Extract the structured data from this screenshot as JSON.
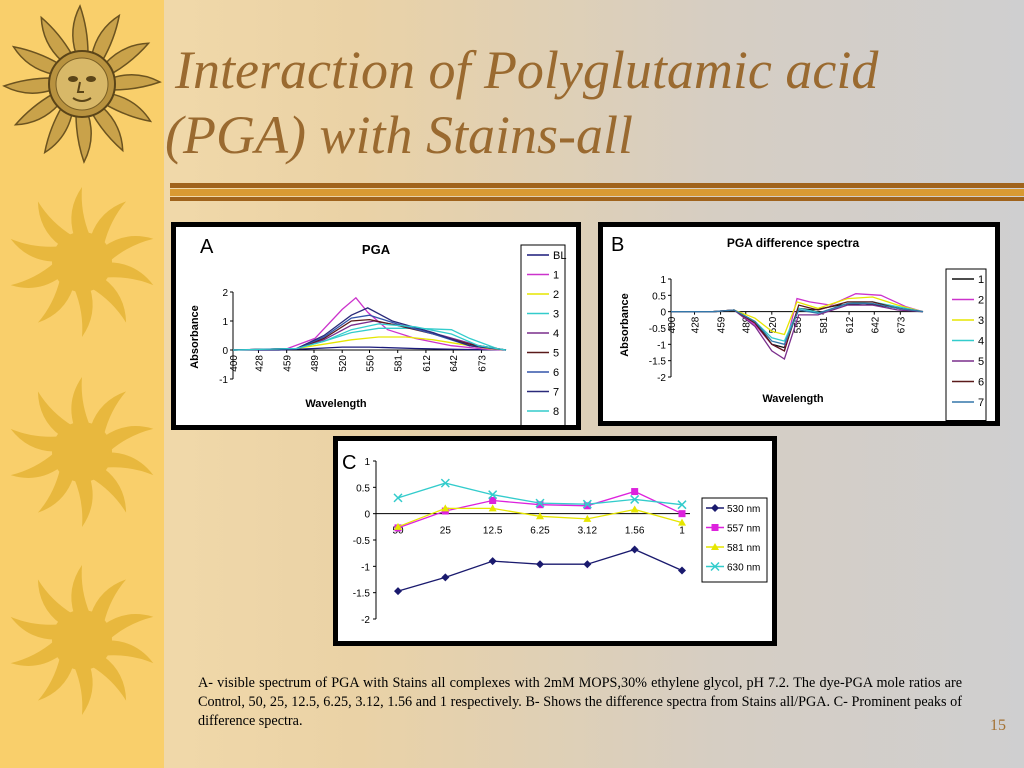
{
  "slide": {
    "title_line1": "Interaction of Polyglutamic acid",
    "title_line2": "(PGA) with Stains-all",
    "caption": "A- visible spectrum of PGA with Stains all complexes with 2mM MOPS,30% ethylene glycol, pH 7.2. The dye-PGA mole ratios are Control, 50, 25, 12.5, 6.25, 3.12, 1.56 and 1 respectively. B- Shows the difference spectra from Stains all/PGA. C- Prominent peaks of difference spectra.",
    "page_number": "15"
  },
  "chart_data": [
    {
      "id": "A",
      "panel_label": "A",
      "type": "line",
      "title": "PGA",
      "xlabel": "Wavelength",
      "ylabel": "Absorbance",
      "x": [
        "400",
        "428",
        "459",
        "489",
        "520",
        "550",
        "581",
        "612",
        "642",
        "673"
      ],
      "ylim": [
        -1,
        2
      ],
      "yticks": [
        "2",
        "1",
        "0",
        "-1"
      ],
      "legend": "right",
      "series": [
        {
          "name": "BL",
          "color": "#1a1a7a",
          "values": [
            [
              400,
              0
            ],
            [
              450,
              0
            ],
            [
              490,
              0.05
            ],
            [
              520,
              0.1
            ],
            [
              550,
              0.1
            ],
            [
              600,
              0.05
            ],
            [
              650,
              0.02
            ],
            [
              700,
              0
            ]
          ]
        },
        {
          "name": "1",
          "color": "#cc33cc",
          "values": [
            [
              400,
              0
            ],
            [
              460,
              0.05
            ],
            [
              490,
              0.4
            ],
            [
              520,
              1.4
            ],
            [
              535,
              1.8
            ],
            [
              548,
              1.3
            ],
            [
              570,
              0.7
            ],
            [
              600,
              0.4
            ],
            [
              640,
              0.15
            ],
            [
              680,
              0.02
            ],
            [
              700,
              0
            ]
          ]
        },
        {
          "name": "2",
          "color": "#e6e600",
          "values": [
            [
              400,
              0
            ],
            [
              470,
              0.05
            ],
            [
              500,
              0.2
            ],
            [
              530,
              0.35
            ],
            [
              560,
              0.45
            ],
            [
              590,
              0.45
            ],
            [
              620,
              0.35
            ],
            [
              650,
              0.2
            ],
            [
              680,
              0.05
            ],
            [
              700,
              0
            ]
          ]
        },
        {
          "name": "3",
          "color": "#33cccc",
          "values": [
            [
              400,
              0
            ],
            [
              470,
              0.05
            ],
            [
              500,
              0.3
            ],
            [
              530,
              0.6
            ],
            [
              560,
              0.75
            ],
            [
              600,
              0.75
            ],
            [
              640,
              0.7
            ],
            [
              660,
              0.4
            ],
            [
              690,
              0.05
            ],
            [
              700,
              0
            ]
          ]
        },
        {
          "name": "4",
          "color": "#7a2e8c",
          "values": [
            [
              400,
              0
            ],
            [
              470,
              0.05
            ],
            [
              500,
              0.35
            ],
            [
              530,
              0.85
            ],
            [
              555,
              1.0
            ],
            [
              590,
              0.8
            ],
            [
              630,
              0.5
            ],
            [
              670,
              0.15
            ],
            [
              700,
              0
            ]
          ]
        },
        {
          "name": "5",
          "color": "#5a1a1a",
          "values": [
            [
              400,
              0
            ],
            [
              470,
              0.05
            ],
            [
              500,
              0.4
            ],
            [
              530,
              1.0
            ],
            [
              550,
              1.05
            ],
            [
              580,
              0.85
            ],
            [
              620,
              0.55
            ],
            [
              660,
              0.2
            ],
            [
              700,
              0
            ]
          ]
        },
        {
          "name": "6",
          "color": "#3355aa",
          "values": [
            [
              400,
              0
            ],
            [
              470,
              0.05
            ],
            [
              500,
              0.45
            ],
            [
              530,
              1.1
            ],
            [
              550,
              1.2
            ],
            [
              580,
              0.9
            ],
            [
              620,
              0.55
            ],
            [
              660,
              0.15
            ],
            [
              700,
              0
            ]
          ]
        },
        {
          "name": "7",
          "color": "#2a2a7a",
          "values": [
            [
              400,
              0
            ],
            [
              470,
              0.05
            ],
            [
              500,
              0.5
            ],
            [
              530,
              1.2
            ],
            [
              548,
              1.45
            ],
            [
              575,
              1.0
            ],
            [
              620,
              0.6
            ],
            [
              660,
              0.15
            ],
            [
              700,
              0
            ]
          ]
        },
        {
          "name": "8",
          "color": "#33cccc",
          "values": [
            [
              400,
              0
            ],
            [
              470,
              0.05
            ],
            [
              500,
              0.3
            ],
            [
              530,
              0.7
            ],
            [
              560,
              0.9
            ],
            [
              600,
              0.8
            ],
            [
              640,
              0.55
            ],
            [
              670,
              0.15
            ],
            [
              700,
              0
            ]
          ]
        }
      ]
    },
    {
      "id": "B",
      "panel_label": "B",
      "type": "line",
      "title": "PGA difference spectra",
      "xlabel": "Wavelength",
      "ylabel": "Absorbance",
      "x": [
        "400",
        "428",
        "459",
        "489",
        "520",
        "550",
        "581",
        "612",
        "642",
        "673"
      ],
      "ylim": [
        -2,
        1
      ],
      "yticks": [
        "1",
        "0.5",
        "0",
        "-0.5",
        "-1",
        "-1.5",
        "-2"
      ],
      "legend": "right",
      "series": [
        {
          "name": "1",
          "color": "#111111",
          "values": [
            [
              400,
              0
            ],
            [
              450,
              0
            ],
            [
              475,
              0.05
            ],
            [
              500,
              -0.3
            ],
            [
              520,
              -1.0
            ],
            [
              535,
              -1.1
            ],
            [
              552,
              0.1
            ],
            [
              570,
              0.05
            ],
            [
              600,
              0.2
            ],
            [
              630,
              0.25
            ],
            [
              660,
              0.15
            ],
            [
              690,
              0.05
            ],
            [
              700,
              0
            ]
          ]
        },
        {
          "name": "2",
          "color": "#cc33cc",
          "values": [
            [
              400,
              0
            ],
            [
              450,
              0
            ],
            [
              475,
              0.05
            ],
            [
              500,
              -0.4
            ],
            [
              520,
              -1.0
            ],
            [
              535,
              -1.2
            ],
            [
              550,
              0.4
            ],
            [
              565,
              0.3
            ],
            [
              590,
              0.2
            ],
            [
              620,
              0.55
            ],
            [
              650,
              0.5
            ],
            [
              680,
              0.15
            ],
            [
              700,
              0
            ]
          ]
        },
        {
          "name": "3",
          "color": "#e6e600",
          "values": [
            [
              400,
              0
            ],
            [
              450,
              0
            ],
            [
              475,
              0.05
            ],
            [
              500,
              -0.2
            ],
            [
              520,
              -0.6
            ],
            [
              535,
              -0.7
            ],
            [
              550,
              0.3
            ],
            [
              575,
              0.1
            ],
            [
              610,
              0.4
            ],
            [
              640,
              0.45
            ],
            [
              670,
              0.2
            ],
            [
              700,
              0
            ]
          ]
        },
        {
          "name": "4",
          "color": "#33cccc",
          "values": [
            [
              400,
              0
            ],
            [
              450,
              0
            ],
            [
              475,
              0.05
            ],
            [
              500,
              -0.3
            ],
            [
              520,
              -0.8
            ],
            [
              535,
              -0.9
            ],
            [
              552,
              0.1
            ],
            [
              580,
              -0.05
            ],
            [
              610,
              0.25
            ],
            [
              640,
              0.3
            ],
            [
              670,
              0.15
            ],
            [
              700,
              0
            ]
          ]
        },
        {
          "name": "5",
          "color": "#7a2e8c",
          "values": [
            [
              400,
              0
            ],
            [
              450,
              0
            ],
            [
              475,
              0.05
            ],
            [
              500,
              -0.45
            ],
            [
              520,
              -1.2
            ],
            [
              535,
              -1.45
            ],
            [
              552,
              -0.1
            ],
            [
              575,
              -0.1
            ],
            [
              610,
              0.2
            ],
            [
              640,
              0.2
            ],
            [
              670,
              0.05
            ],
            [
              700,
              0
            ]
          ]
        },
        {
          "name": "6",
          "color": "#5a1a1a",
          "values": [
            [
              400,
              0
            ],
            [
              450,
              0
            ],
            [
              475,
              0.05
            ],
            [
              500,
              -0.35
            ],
            [
              520,
              -1.0
            ],
            [
              535,
              -1.2
            ],
            [
              552,
              0.2
            ],
            [
              575,
              0.05
            ],
            [
              610,
              0.3
            ],
            [
              640,
              0.3
            ],
            [
              670,
              0.1
            ],
            [
              700,
              0
            ]
          ]
        },
        {
          "name": "7",
          "color": "#3377aa",
          "values": [
            [
              400,
              0
            ],
            [
              450,
              0
            ],
            [
              475,
              0.05
            ],
            [
              500,
              -0.3
            ],
            [
              520,
              -0.9
            ],
            [
              535,
              -1.0
            ],
            [
              552,
              0.05
            ],
            [
              575,
              -0.05
            ],
            [
              610,
              0.25
            ],
            [
              640,
              0.25
            ],
            [
              670,
              0.1
            ],
            [
              700,
              0
            ]
          ]
        }
      ]
    },
    {
      "id": "C",
      "panel_label": "C",
      "type": "line",
      "title": "",
      "xlabel": "",
      "ylabel": "",
      "categories": [
        "50",
        "25",
        "12.5",
        "6.25",
        "3.12",
        "1.56",
        "1"
      ],
      "ylim": [
        -2,
        1
      ],
      "yticks": [
        "1",
        "0.5",
        "0",
        "-0.5",
        "-1",
        "-1.5",
        "-2"
      ],
      "legend": "right",
      "series": [
        {
          "name": "530 nm",
          "color": "#1a1a6e",
          "marker": "diamond",
          "values": [
            -1.47,
            -1.21,
            -0.9,
            -0.96,
            -0.96,
            -0.68,
            -1.08
          ]
        },
        {
          "name": "557 nm",
          "color": "#dd22dd",
          "marker": "square",
          "values": [
            -0.27,
            0.05,
            0.25,
            0.17,
            0.15,
            0.42,
            0.0
          ]
        },
        {
          "name": "581 nm",
          "color": "#e6e600",
          "marker": "triangle",
          "values": [
            -0.25,
            0.1,
            0.1,
            -0.05,
            -0.1,
            0.08,
            -0.17
          ]
        },
        {
          "name": "630 nm",
          "color": "#33cccc",
          "marker": "cross",
          "values": [
            0.3,
            0.58,
            0.36,
            0.2,
            0.18,
            0.27,
            0.17
          ]
        }
      ]
    }
  ]
}
